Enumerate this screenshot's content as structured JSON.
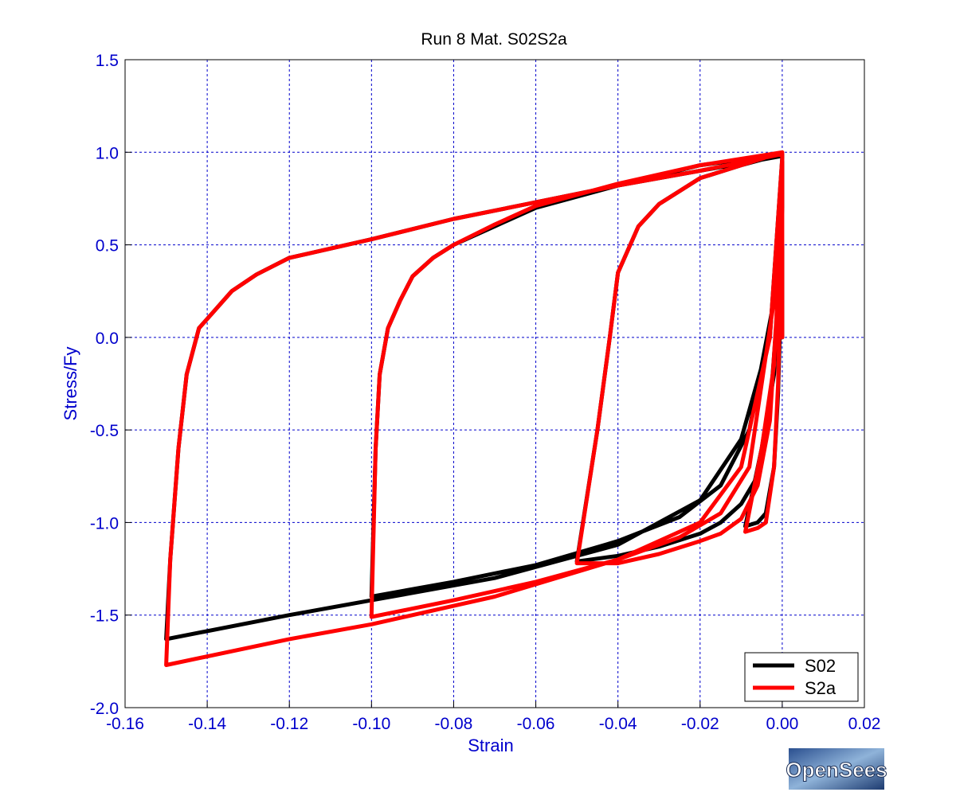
{
  "chart_data": {
    "type": "line",
    "title": "Run 8   Mat. S02S2a",
    "xlabel": "Strain",
    "ylabel": "Stress/Fy",
    "xlim": [
      -0.16,
      0.02
    ],
    "ylim": [
      -2.0,
      1.5
    ],
    "xticks": [
      -0.16,
      -0.14,
      -0.12,
      -0.1,
      -0.08,
      -0.06,
      -0.04,
      -0.02,
      0.0,
      0.02
    ],
    "xtick_labels": [
      "-0.16",
      "-0.14",
      "-0.12",
      "-0.10",
      "-0.08",
      "-0.06",
      "-0.04",
      "-0.02",
      "0.00",
      "0.02"
    ],
    "yticks": [
      1.5,
      1.0,
      0.5,
      0.0,
      -0.5,
      -1.0,
      -1.5,
      -2.0
    ],
    "ytick_labels": [
      "1.5",
      "1.0",
      "0.5",
      "0.0",
      "-0.5",
      "-1.0",
      "-1.5",
      "-2.0"
    ],
    "grid": true,
    "legend_position": "bottom-right",
    "series": [
      {
        "name": "S02",
        "color": "#000000",
        "x": [
          0.0,
          0.0,
          -0.001,
          -0.002,
          -0.004,
          -0.006,
          -0.009,
          -0.005,
          -0.002,
          0.0,
          0.0,
          -0.001,
          -0.003,
          -0.006,
          -0.01,
          -0.015,
          -0.02,
          -0.03,
          -0.04,
          -0.05,
          -0.045,
          -0.042,
          -0.04,
          -0.035,
          -0.03,
          -0.02,
          -0.01,
          0.0,
          0.0,
          -0.002,
          -0.008,
          -0.015,
          -0.025,
          -0.04,
          -0.06,
          -0.08,
          -0.1,
          -0.099,
          -0.098,
          -0.096,
          -0.093,
          -0.09,
          -0.085,
          -0.08,
          -0.07,
          -0.06,
          -0.04,
          -0.02,
          0.0,
          0.0,
          -0.003,
          -0.01,
          -0.02,
          -0.04,
          -0.07,
          -0.1,
          -0.12,
          -0.15,
          -0.149,
          -0.147,
          -0.145,
          -0.142,
          -0.138,
          -0.134,
          -0.128,
          -0.12,
          -0.1,
          -0.08,
          -0.06,
          -0.04,
          -0.02,
          0.0
        ],
        "y": [
          0.0,
          0.5,
          -0.3,
          -0.7,
          -0.95,
          -1.0,
          -1.02,
          -0.6,
          -0.2,
          0.7,
          0.95,
          0.2,
          -0.4,
          -0.75,
          -0.9,
          -1.0,
          -1.06,
          -1.13,
          -1.18,
          -1.21,
          -0.5,
          0.0,
          0.35,
          0.6,
          0.72,
          0.86,
          0.93,
          0.99,
          0.97,
          0.2,
          -0.5,
          -0.8,
          -0.97,
          -1.1,
          -1.23,
          -1.32,
          -1.4,
          -0.6,
          -0.2,
          0.05,
          0.2,
          0.33,
          0.43,
          0.5,
          0.6,
          0.7,
          0.82,
          0.93,
          0.99,
          0.97,
          0.0,
          -0.55,
          -0.88,
          -1.12,
          -1.3,
          -1.42,
          -1.5,
          -1.63,
          -1.2,
          -0.6,
          -0.2,
          0.05,
          0.15,
          0.25,
          0.34,
          0.43,
          0.53,
          0.64,
          0.73,
          0.82,
          0.9,
          0.98
        ]
      },
      {
        "name": "S2a",
        "color": "#ff0000",
        "x": [
          0.0,
          0.0,
          -0.001,
          -0.002,
          -0.004,
          -0.006,
          -0.009,
          -0.005,
          -0.002,
          0.0,
          0.0,
          -0.001,
          -0.003,
          -0.006,
          -0.01,
          -0.015,
          -0.02,
          -0.03,
          -0.04,
          -0.05,
          -0.045,
          -0.042,
          -0.04,
          -0.035,
          -0.03,
          -0.02,
          -0.01,
          0.0,
          0.0,
          -0.002,
          -0.008,
          -0.015,
          -0.025,
          -0.04,
          -0.06,
          -0.08,
          -0.1,
          -0.099,
          -0.098,
          -0.096,
          -0.093,
          -0.09,
          -0.085,
          -0.08,
          -0.07,
          -0.06,
          -0.04,
          -0.02,
          0.0,
          0.0,
          -0.003,
          -0.01,
          -0.02,
          -0.04,
          -0.07,
          -0.1,
          -0.12,
          -0.15,
          -0.149,
          -0.147,
          -0.145,
          -0.142,
          -0.138,
          -0.134,
          -0.128,
          -0.12,
          -0.1,
          -0.08,
          -0.06,
          -0.04,
          -0.02,
          0.0
        ],
        "y": [
          0.0,
          0.8,
          -0.25,
          -0.7,
          -1.0,
          -1.03,
          -1.05,
          -0.6,
          -0.15,
          0.75,
          0.97,
          0.25,
          -0.45,
          -0.8,
          -0.98,
          -1.06,
          -1.1,
          -1.17,
          -1.22,
          -1.22,
          -0.5,
          0.0,
          0.35,
          0.6,
          0.72,
          0.86,
          0.93,
          1.0,
          0.97,
          0.2,
          -0.7,
          -0.95,
          -1.08,
          -1.2,
          -1.32,
          -1.42,
          -1.51,
          -0.6,
          -0.2,
          0.05,
          0.2,
          0.33,
          0.43,
          0.5,
          0.61,
          0.71,
          0.83,
          0.93,
          1.0,
          0.97,
          0.0,
          -0.7,
          -1.0,
          -1.2,
          -1.4,
          -1.55,
          -1.63,
          -1.77,
          -1.2,
          -0.6,
          -0.2,
          0.05,
          0.15,
          0.25,
          0.34,
          0.43,
          0.53,
          0.64,
          0.73,
          0.82,
          0.9,
          0.99
        ]
      }
    ]
  },
  "logo": {
    "text": "OpenSees"
  }
}
